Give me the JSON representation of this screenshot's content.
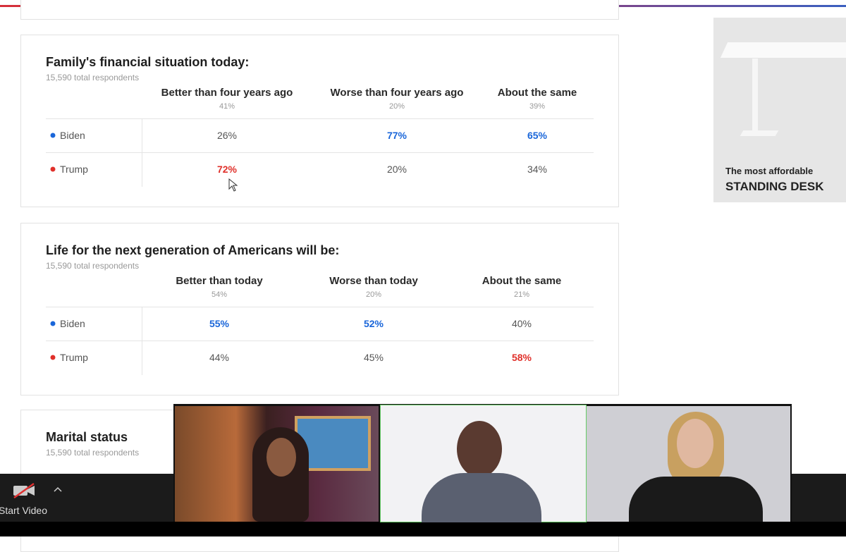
{
  "tables": [
    {
      "title": "Family's financial situation today:",
      "respondents": "15,590 total respondents",
      "columns": [
        {
          "name": "Better than four years ago",
          "share": "41%"
        },
        {
          "name": "Worse than four years ago",
          "share": "20%"
        },
        {
          "name": "About the same",
          "share": "39%"
        }
      ],
      "rows": [
        {
          "label": "Biden",
          "color": "#1a66d9",
          "cells": [
            "26%",
            "77%",
            "65%"
          ],
          "bold": [
            false,
            true,
            true
          ]
        },
        {
          "label": "Trump",
          "color": "#e0302a",
          "cells": [
            "72%",
            "20%",
            "34%"
          ],
          "bold": [
            true,
            false,
            false
          ]
        }
      ]
    },
    {
      "title": "Life for the next generation of Americans will be:",
      "respondents": "15,590 total respondents",
      "columns": [
        {
          "name": "Better than today",
          "share": "54%"
        },
        {
          "name": "Worse than today",
          "share": "20%"
        },
        {
          "name": "About the same",
          "share": "21%"
        }
      ],
      "rows": [
        {
          "label": "Biden",
          "color": "#1a66d9",
          "cells": [
            "55%",
            "52%",
            "40%"
          ],
          "bold": [
            true,
            true,
            false
          ]
        },
        {
          "label": "Trump",
          "color": "#e0302a",
          "cells": [
            "44%",
            "45%",
            "58%"
          ],
          "bold": [
            false,
            false,
            true
          ]
        }
      ]
    }
  ],
  "next_card": {
    "title": "Marital status",
    "respondents": "15,590 total respondents"
  },
  "ad": {
    "line1": "The most affordable",
    "line2": "STANDING DESK"
  },
  "toolbar": {
    "video_button": "Start Video"
  }
}
